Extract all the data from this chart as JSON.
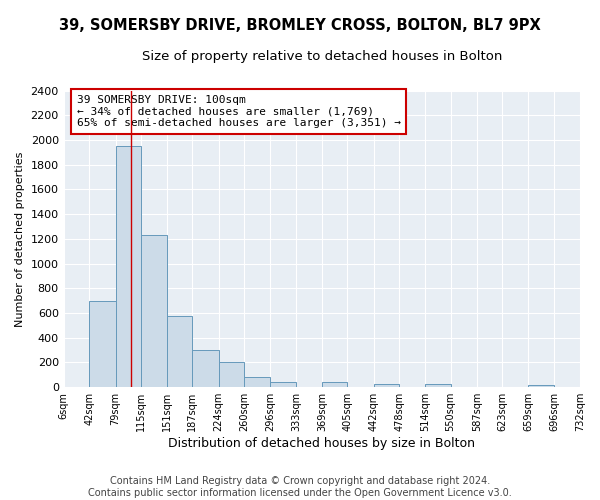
{
  "title": "39, SOMERSBY DRIVE, BROMLEY CROSS, BOLTON, BL7 9PX",
  "subtitle": "Size of property relative to detached houses in Bolton",
  "xlabel": "Distribution of detached houses by size in Bolton",
  "ylabel": "Number of detached properties",
  "bar_edges": [
    6,
    42,
    79,
    115,
    151,
    187,
    224,
    260,
    296,
    333,
    369,
    405,
    442,
    478,
    514,
    550,
    587,
    623,
    659,
    696,
    732
  ],
  "bar_heights": [
    0,
    700,
    1950,
    1230,
    575,
    300,
    200,
    80,
    45,
    0,
    40,
    0,
    25,
    0,
    25,
    0,
    0,
    0,
    15,
    0,
    0
  ],
  "bar_color": "#ccdbe8",
  "bar_edge_color": "#6699bb",
  "bar_edge_width": 0.7,
  "property_line_x": 100,
  "property_line_color": "#cc0000",
  "annotation_line1": "39 SOMERSBY DRIVE: 100sqm",
  "annotation_line2": "← 34% of detached houses are smaller (1,769)",
  "annotation_line3": "65% of semi-detached houses are larger (3,351) →",
  "annotation_box_color": "#ffffff",
  "annotation_box_edge_color": "#cc0000",
  "ylim": [
    0,
    2400
  ],
  "yticks": [
    0,
    200,
    400,
    600,
    800,
    1000,
    1200,
    1400,
    1600,
    1800,
    2000,
    2200,
    2400
  ],
  "tick_labels": [
    "6sqm",
    "42sqm",
    "79sqm",
    "115sqm",
    "151sqm",
    "187sqm",
    "224sqm",
    "260sqm",
    "296sqm",
    "333sqm",
    "369sqm",
    "405sqm",
    "442sqm",
    "478sqm",
    "514sqm",
    "550sqm",
    "587sqm",
    "623sqm",
    "659sqm",
    "696sqm",
    "732sqm"
  ],
  "footer1": "Contains HM Land Registry data © Crown copyright and database right 2024.",
  "footer2": "Contains public sector information licensed under the Open Government Licence v3.0.",
  "bg_color": "#ffffff",
  "plot_bg_color": "#e8eef4",
  "grid_color": "#ffffff",
  "title_fontsize": 10.5,
  "subtitle_fontsize": 9.5,
  "xlabel_fontsize": 9,
  "ylabel_fontsize": 8,
  "tick_fontsize": 7,
  "footer_fontsize": 7
}
